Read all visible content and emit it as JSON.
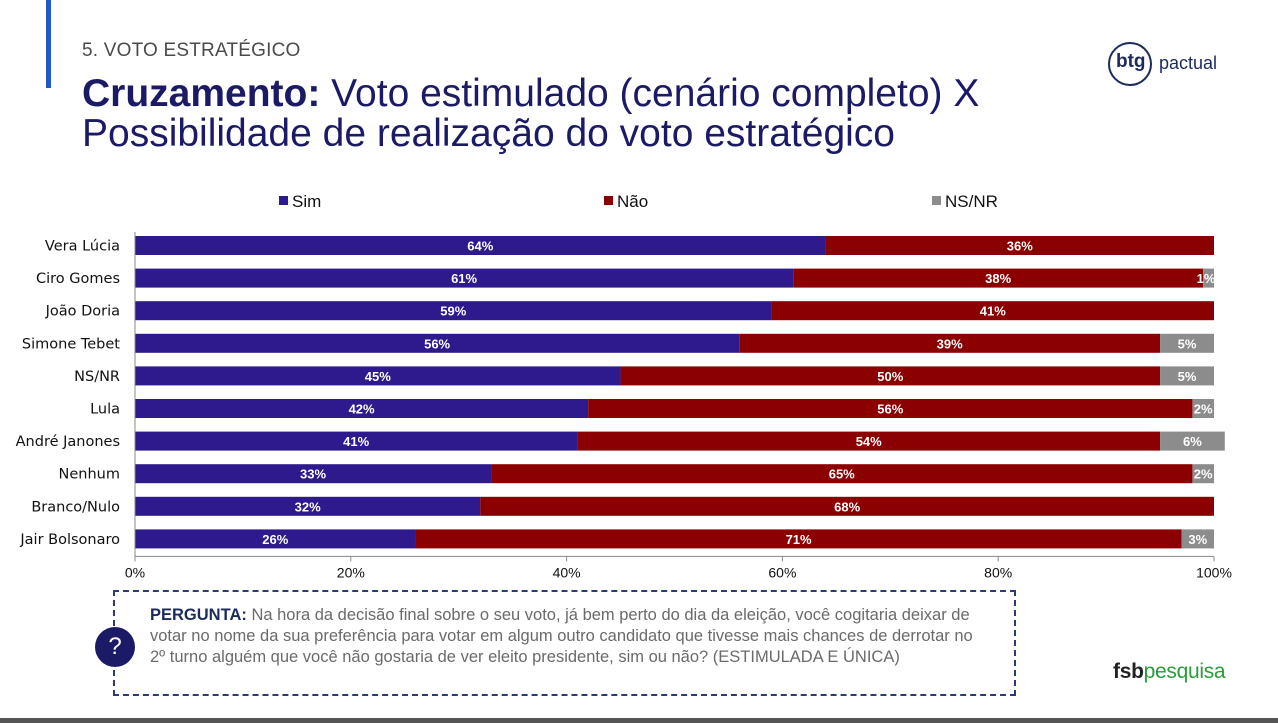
{
  "header": {
    "section": "5. VOTO ESTRATÉGICO",
    "title_bold": "Cruzamento:",
    "title_rest": " Voto estimulado (cenário completo) X Possibilidade de realização do voto estratégico"
  },
  "logos": {
    "btg_bold": "btg",
    "btg_light": "pactual",
    "fsb_bold": "fsb",
    "fsb_light": "pesquisa"
  },
  "question": {
    "label": "PERGUNTA:",
    "text": " Na hora da decisão final sobre o seu voto, já bem perto do dia da eleição, você cogitaria deixar de votar no nome da sua preferência para votar em algum outro candidato que tivesse mais chances de derrotar no 2º turno alguém que você não gostaria de ver eleito presidente, sim ou não? (ESTIMULADA E ÚNICA)",
    "icon": "?"
  },
  "chart_data": {
    "type": "bar",
    "orientation": "horizontal",
    "stacked": true,
    "categories": [
      "Vera Lúcia",
      "Ciro Gomes",
      "João Doria",
      "Simone Tebet",
      "NS/NR",
      "Lula",
      "André Janones",
      "Nenhum",
      "Branco/Nulo",
      "Jair Bolsonaro"
    ],
    "series": [
      {
        "name": "Sim",
        "color": "#2e1a8c",
        "values": [
          64,
          61,
          59,
          56,
          45,
          42,
          41,
          33,
          32,
          26
        ],
        "labels": [
          "64%",
          "61%",
          "59%",
          "56%",
          "45%",
          "42%",
          "41%",
          "33%",
          "32%",
          "26%"
        ]
      },
      {
        "name": "Não",
        "color": "#8b0000",
        "values": [
          36,
          38,
          41,
          39,
          50,
          56,
          54,
          65,
          68,
          71
        ],
        "labels": [
          "36%",
          "38%",
          "41%",
          "39%",
          "50%",
          "56%",
          "54%",
          "65%",
          "68%",
          "71%"
        ]
      },
      {
        "name": "NS/NR",
        "color": "#8c8c8c",
        "values": [
          0,
          1,
          0,
          5,
          5,
          2,
          6,
          2,
          0,
          3
        ],
        "labels": [
          "",
          "1%",
          "",
          "5%",
          "5%",
          "2%",
          "6%",
          "2%",
          "",
          "3%"
        ]
      }
    ],
    "xlim": [
      0,
      100
    ],
    "xticks": [
      "0%",
      "20%",
      "40%",
      "60%",
      "80%",
      "100%"
    ],
    "legend_position": "top"
  }
}
